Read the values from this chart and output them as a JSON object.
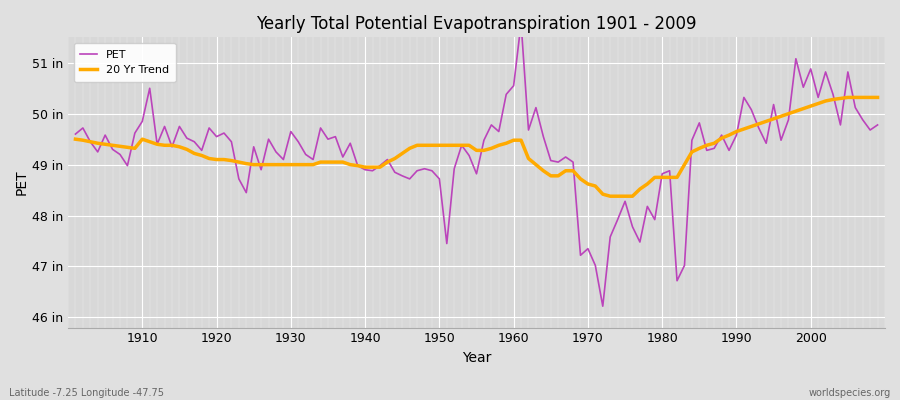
{
  "title": "Yearly Total Potential Evapotranspiration 1901 - 2009",
  "xlabel": "Year",
  "ylabel": "PET",
  "bottom_left": "Latitude -7.25 Longitude -47.75",
  "bottom_right": "worldspecies.org",
  "pet_color": "#bb44bb",
  "trend_color": "#ffaa00",
  "bg_color": "#e0e0e0",
  "plot_bg_color": "#d8d8d8",
  "ylim": [
    45.8,
    51.5
  ],
  "yticks": [
    46,
    47,
    48,
    49,
    50,
    51
  ],
  "ytick_labels": [
    "46 in",
    "47 in",
    "48 in",
    "49 in",
    "50 in",
    "51 in"
  ],
  "years": [
    1901,
    1902,
    1903,
    1904,
    1905,
    1906,
    1907,
    1908,
    1909,
    1910,
    1911,
    1912,
    1913,
    1914,
    1915,
    1916,
    1917,
    1918,
    1919,
    1920,
    1921,
    1922,
    1923,
    1924,
    1925,
    1926,
    1927,
    1928,
    1929,
    1930,
    1931,
    1932,
    1933,
    1934,
    1935,
    1936,
    1937,
    1938,
    1939,
    1940,
    1941,
    1942,
    1943,
    1944,
    1945,
    1946,
    1947,
    1948,
    1949,
    1950,
    1951,
    1952,
    1953,
    1954,
    1955,
    1956,
    1957,
    1958,
    1959,
    1960,
    1961,
    1962,
    1963,
    1964,
    1965,
    1966,
    1967,
    1968,
    1969,
    1970,
    1971,
    1972,
    1973,
    1974,
    1975,
    1976,
    1977,
    1978,
    1979,
    1980,
    1981,
    1982,
    1983,
    1984,
    1985,
    1986,
    1987,
    1988,
    1989,
    1990,
    1991,
    1992,
    1993,
    1994,
    1995,
    1996,
    1997,
    1998,
    1999,
    2000,
    2001,
    2002,
    2003,
    2004,
    2005,
    2006,
    2007,
    2008,
    2009
  ],
  "pet": [
    49.6,
    49.72,
    49.45,
    49.25,
    49.58,
    49.3,
    49.2,
    48.98,
    49.62,
    49.85,
    50.5,
    49.4,
    49.75,
    49.35,
    49.75,
    49.52,
    49.45,
    49.28,
    49.72,
    49.55,
    49.62,
    49.45,
    48.72,
    48.45,
    49.35,
    48.9,
    49.5,
    49.25,
    49.1,
    49.65,
    49.45,
    49.2,
    49.1,
    49.72,
    49.5,
    49.55,
    49.15,
    49.42,
    48.98,
    48.9,
    48.88,
    48.98,
    49.1,
    48.85,
    48.78,
    48.72,
    48.88,
    48.92,
    48.88,
    48.72,
    47.45,
    48.92,
    49.38,
    49.18,
    48.82,
    49.48,
    49.78,
    49.65,
    50.38,
    50.55,
    51.78,
    49.68,
    50.12,
    49.55,
    49.08,
    49.05,
    49.15,
    49.05,
    47.22,
    47.35,
    47.02,
    46.22,
    47.58,
    47.92,
    48.28,
    47.78,
    47.48,
    48.18,
    47.92,
    48.82,
    48.88,
    46.72,
    47.02,
    49.48,
    49.82,
    49.28,
    49.32,
    49.58,
    49.28,
    49.58,
    50.32,
    50.08,
    49.72,
    49.42,
    50.18,
    49.48,
    49.88,
    51.08,
    50.52,
    50.88,
    50.32,
    50.82,
    50.38,
    49.78,
    50.82,
    50.12,
    49.88,
    49.68,
    49.78
  ],
  "trend": [
    49.5,
    49.48,
    49.45,
    49.42,
    49.4,
    49.38,
    49.36,
    49.34,
    49.32,
    49.5,
    49.45,
    49.4,
    49.38,
    49.38,
    49.35,
    49.3,
    49.22,
    49.18,
    49.12,
    49.1,
    49.1,
    49.08,
    49.05,
    49.02,
    49.0,
    49.0,
    49.0,
    49.0,
    49.0,
    49.0,
    49.0,
    49.0,
    49.0,
    49.05,
    49.05,
    49.05,
    49.05,
    49.0,
    48.98,
    48.95,
    48.95,
    48.95,
    49.05,
    49.12,
    49.22,
    49.32,
    49.38,
    49.38,
    49.38,
    49.38,
    49.38,
    49.38,
    49.38,
    49.38,
    49.28,
    49.28,
    49.32,
    49.38,
    49.42,
    49.48,
    49.48,
    49.12,
    49.0,
    48.88,
    48.78,
    48.78,
    48.88,
    48.88,
    48.72,
    48.62,
    48.58,
    48.42,
    48.38,
    48.38,
    48.38,
    48.38,
    48.52,
    48.62,
    48.75,
    48.75,
    48.75,
    48.75,
    49.0,
    49.25,
    49.32,
    49.38,
    49.42,
    49.52,
    49.58,
    49.65,
    49.7,
    49.75,
    49.8,
    49.85,
    49.9,
    49.95,
    50.0,
    50.05,
    50.1,
    50.15,
    50.2,
    50.25,
    50.28,
    50.3,
    50.32,
    50.32,
    50.32,
    50.32,
    50.32
  ]
}
